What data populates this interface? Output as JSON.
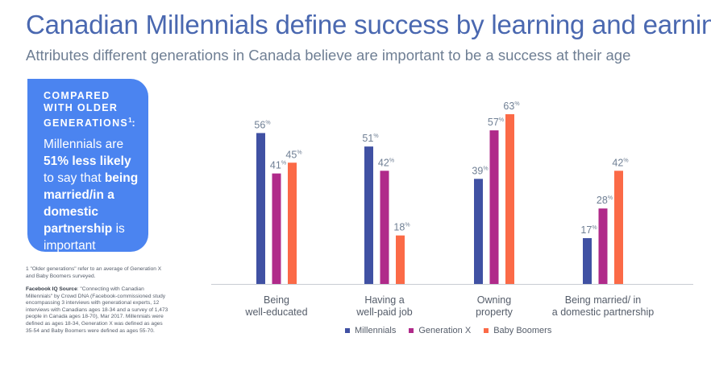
{
  "title": "Canadian Millennials define success by learning and earning",
  "subtitle": "Attributes different generations in Canada believe are important to be a success at their age",
  "callout": {
    "heading": "COMPARED WITH OLDER GENERATIONS",
    "heading_sup": "1",
    "text_1": "Millennials are ",
    "text_bold_1": "51% less likely",
    "text_2": " to say that ",
    "text_bold_2": "being married/in a domestic partnership",
    "text_3": " is important"
  },
  "footnote": "1 \"Older generations\" refer to an average of Generation X and Baby Boomers surveyed.",
  "source_label": "Facebook IQ Source",
  "source_text": ": \"Connecting with Canadian Millennials\" by Crowd DNA (Facebook-commissioned study encompassing 3 interviews with generational experts, 12 interviews with Canadians ages 18-34 and a survey of 1,473 people in Canada ages 18-70), Mar 2017. Millennials were defined as ages 18-34, Generation X was defined as ages 35-54 and Baby Boomers were defined as ages 55-70.",
  "chart_data": {
    "type": "bar",
    "categories": [
      [
        "Being",
        "well-educated"
      ],
      [
        "Having a",
        "well-paid job"
      ],
      [
        "Owning",
        "property"
      ],
      [
        "Being married/ in",
        "a domestic partnership"
      ]
    ],
    "series": [
      {
        "name": "Millennials",
        "color": "#4051a3",
        "values": [
          56,
          51,
          39,
          17
        ]
      },
      {
        "name": "Generation X",
        "color": "#b02a8a",
        "values": [
          41,
          42,
          57,
          28
        ]
      },
      {
        "name": "Baby Boomers",
        "color": "#fb6a47",
        "values": [
          45,
          18,
          63,
          42
        ]
      }
    ],
    "value_suffix": "%",
    "ylim": [
      0,
      70
    ],
    "grid": false,
    "legend_position": "bottom"
  }
}
